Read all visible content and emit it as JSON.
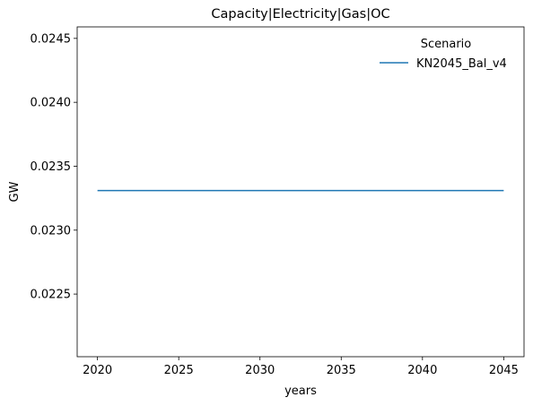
{
  "chart_data": {
    "type": "line",
    "title": "Capacity|Electricity|Gas|OC",
    "xlabel": "years",
    "ylabel": "GW",
    "xlim": [
      2018.75,
      2046.25
    ],
    "ylim": [
      0.02201,
      0.02459
    ],
    "xticks": [
      2020,
      2025,
      2030,
      2035,
      2040,
      2045
    ],
    "yticks": [
      0.0225,
      0.023,
      0.0235,
      0.024,
      0.0245
    ],
    "ytick_labels": [
      "0.0225",
      "0.0230",
      "0.0235",
      "0.0240",
      "0.0245"
    ],
    "grid": false,
    "legend": {
      "title": "Scenario",
      "placement": "top-right"
    },
    "series": [
      {
        "name": "KN2045_Bal_v4",
        "color": "#1f77b4",
        "x": [
          2020,
          2025,
          2030,
          2035,
          2040,
          2045
        ],
        "y": [
          0.02331,
          0.02331,
          0.02331,
          0.02331,
          0.02331,
          0.02331
        ]
      }
    ]
  }
}
